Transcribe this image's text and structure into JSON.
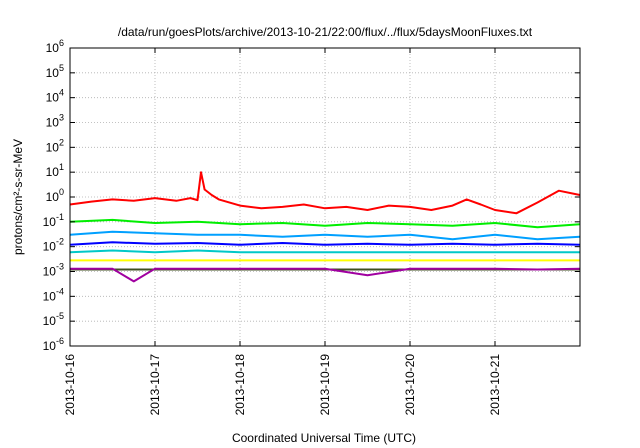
{
  "chart_data": {
    "type": "line",
    "title": "/data/run/goesPlots/archive/2013-10-21/22:00/flux/../flux/5daysMoonFluxes.txt",
    "xlabel": "Coordinated Universal Time (UTC)",
    "ylabel": "protons/cm²-s-sr-MeV",
    "x_range": [
      "2013-10-16",
      "2013-10-22"
    ],
    "x_ticks": [
      "2013-10-16",
      "2013-10-17",
      "2013-10-18",
      "2013-10-19",
      "2013-10-20",
      "2013-10-21"
    ],
    "y_scale": "log",
    "ylim": [
      1e-06,
      1000000.0
    ],
    "y_ticks": [
      {
        "base": "10",
        "exp": "-6",
        "value": 1e-06
      },
      {
        "base": "10",
        "exp": "-5",
        "value": 1e-05
      },
      {
        "base": "10",
        "exp": "-4",
        "value": 0.0001
      },
      {
        "base": "10",
        "exp": "-3",
        "value": 0.001
      },
      {
        "base": "10",
        "exp": "-2",
        "value": 0.01
      },
      {
        "base": "10",
        "exp": "-1",
        "value": 0.1
      },
      {
        "base": "10",
        "exp": "0",
        "value": 1
      },
      {
        "base": "10",
        "exp": "1",
        "value": 10
      },
      {
        "base": "10",
        "exp": "2",
        "value": 100
      },
      {
        "base": "10",
        "exp": "3",
        "value": 1000
      },
      {
        "base": "10",
        "exp": "4",
        "value": 10000
      },
      {
        "base": "10",
        "exp": "5",
        "value": 100000
      },
      {
        "base": "10",
        "exp": "6",
        "value": 1000000
      }
    ],
    "grid": true,
    "series": [
      {
        "color": "#ff0000",
        "x": [
          "2013-10-16 00:00",
          "2013-10-16 06:00",
          "2013-10-16 12:00",
          "2013-10-16 18:00",
          "2013-10-17 00:00",
          "2013-10-17 06:00",
          "2013-10-17 10:00",
          "2013-10-17 12:00",
          "2013-10-17 13:00",
          "2013-10-17 14:00",
          "2013-10-17 16:00",
          "2013-10-17 18:00",
          "2013-10-18 00:00",
          "2013-10-18 06:00",
          "2013-10-18 12:00",
          "2013-10-18 18:00",
          "2013-10-19 00:00",
          "2013-10-19 06:00",
          "2013-10-19 12:00",
          "2013-10-19 18:00",
          "2013-10-20 00:00",
          "2013-10-20 06:00",
          "2013-10-20 12:00",
          "2013-10-20 16:00",
          "2013-10-20 20:00",
          "2013-10-21 00:00",
          "2013-10-21 06:00",
          "2013-10-21 12:00",
          "2013-10-21 18:00",
          "2013-10-21 23:59"
        ],
        "y": [
          0.5,
          0.65,
          0.8,
          0.7,
          0.9,
          0.7,
          0.9,
          0.75,
          10,
          2,
          1.2,
          0.8,
          0.45,
          0.35,
          0.4,
          0.5,
          0.35,
          0.4,
          0.3,
          0.45,
          0.4,
          0.3,
          0.45,
          0.8,
          0.5,
          0.3,
          0.22,
          0.6,
          1.8,
          1.2
        ]
      },
      {
        "color": "#00ee00",
        "x": [
          "2013-10-16 00:00",
          "2013-10-16 12:00",
          "2013-10-17 00:00",
          "2013-10-17 12:00",
          "2013-10-18 00:00",
          "2013-10-18 12:00",
          "2013-10-19 00:00",
          "2013-10-19 12:00",
          "2013-10-20 00:00",
          "2013-10-20 12:00",
          "2013-10-21 00:00",
          "2013-10-21 12:00",
          "2013-10-21 23:59"
        ],
        "y": [
          0.1,
          0.12,
          0.09,
          0.1,
          0.08,
          0.09,
          0.07,
          0.09,
          0.08,
          0.07,
          0.09,
          0.06,
          0.08
        ]
      },
      {
        "color": "#00a0ff",
        "x": [
          "2013-10-16 00:00",
          "2013-10-16 12:00",
          "2013-10-17 00:00",
          "2013-10-17 12:00",
          "2013-10-18 00:00",
          "2013-10-18 12:00",
          "2013-10-19 00:00",
          "2013-10-19 12:00",
          "2013-10-20 00:00",
          "2013-10-20 12:00",
          "2013-10-21 00:00",
          "2013-10-21 12:00",
          "2013-10-21 23:59"
        ],
        "y": [
          0.03,
          0.04,
          0.035,
          0.03,
          0.03,
          0.025,
          0.03,
          0.025,
          0.03,
          0.02,
          0.03,
          0.02,
          0.025
        ]
      },
      {
        "color": "#0000ff",
        "x": [
          "2013-10-16 00:00",
          "2013-10-16 12:00",
          "2013-10-17 00:00",
          "2013-10-17 12:00",
          "2013-10-18 00:00",
          "2013-10-18 12:00",
          "2013-10-19 00:00",
          "2013-10-19 12:00",
          "2013-10-20 00:00",
          "2013-10-20 12:00",
          "2013-10-21 00:00",
          "2013-10-21 12:00",
          "2013-10-21 23:59"
        ],
        "y": [
          0.012,
          0.015,
          0.013,
          0.014,
          0.012,
          0.014,
          0.012,
          0.013,
          0.012,
          0.013,
          0.012,
          0.013,
          0.012
        ]
      },
      {
        "color": "#00c8c8",
        "x": [
          "2013-10-16 00:00",
          "2013-10-16 12:00",
          "2013-10-17 00:00",
          "2013-10-17 12:00",
          "2013-10-18 00:00",
          "2013-10-18 12:00",
          "2013-10-19 00:00",
          "2013-10-19 12:00",
          "2013-10-20 00:00",
          "2013-10-20 12:00",
          "2013-10-21 00:00",
          "2013-10-21 12:00",
          "2013-10-21 23:59"
        ],
        "y": [
          0.006,
          0.007,
          0.006,
          0.007,
          0.006,
          0.006,
          0.006,
          0.006,
          0.006,
          0.006,
          0.006,
          0.006,
          0.006
        ]
      },
      {
        "color": "#ffff00",
        "x": [
          "2013-10-16 00:00",
          "2013-10-17 00:00",
          "2013-10-18 00:00",
          "2013-10-19 00:00",
          "2013-10-20 00:00",
          "2013-10-21 00:00",
          "2013-10-21 23:59"
        ],
        "y": [
          0.0028,
          0.0028,
          0.0028,
          0.0028,
          0.0028,
          0.0028,
          0.0028
        ]
      },
      {
        "color": "#a000a0",
        "x": [
          "2013-10-16 00:00",
          "2013-10-16 12:00",
          "2013-10-16 18:00",
          "2013-10-17 00:00",
          "2013-10-17 12:00",
          "2013-10-18 00:00",
          "2013-10-18 12:00",
          "2013-10-19 00:00",
          "2013-10-19 12:00",
          "2013-10-20 00:00",
          "2013-10-20 12:00",
          "2013-10-21 00:00",
          "2013-10-21 12:00",
          "2013-10-21 23:59"
        ],
        "y": [
          0.0013,
          0.0013,
          0.0004,
          0.0013,
          0.0013,
          0.0013,
          0.0013,
          0.0013,
          0.0007,
          0.0013,
          0.0013,
          0.0013,
          0.0012,
          0.0013
        ]
      },
      {
        "color": "#405020",
        "x": [
          "2013-10-16 00:00",
          "2013-10-17 00:00",
          "2013-10-18 00:00",
          "2013-10-19 00:00",
          "2013-10-20 00:00",
          "2013-10-21 00:00",
          "2013-10-21 23:59"
        ],
        "y": [
          0.0012,
          0.0012,
          0.0012,
          0.0012,
          0.0012,
          0.0012,
          0.0012
        ]
      }
    ]
  }
}
